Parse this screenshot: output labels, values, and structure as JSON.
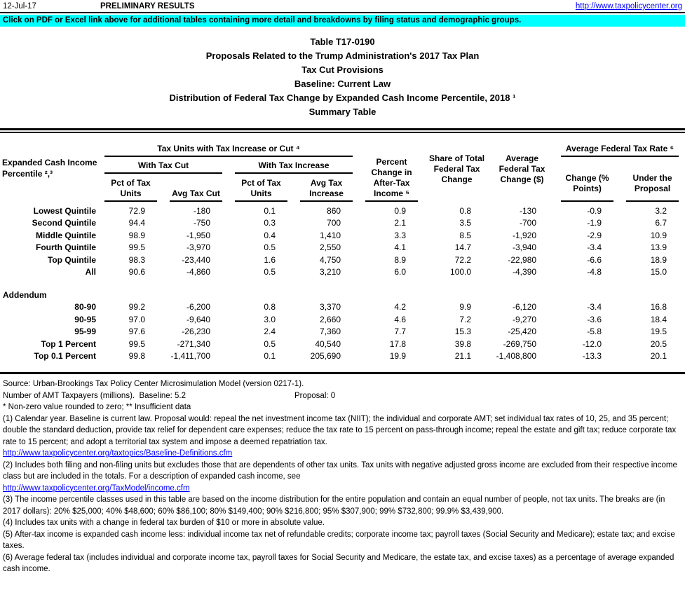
{
  "colors": {
    "banner_bg": "#00FFFF",
    "link": "#0000FF"
  },
  "topbar": {
    "date": "12-Jul-17",
    "status": "PRELIMINARY RESULTS",
    "link": "http://www.taxpolicycenter.org"
  },
  "banner": {
    "text": "Click on PDF or Excel link above for additional tables containing more detail and breakdowns by filing status and demographic groups."
  },
  "title": {
    "lines": [
      "Table T17-0190",
      "Proposals Related to the Trump Administration's 2017 Tax Plan",
      "Tax Cut Provisions",
      "Baseline: Current Law",
      "Distribution of Federal Tax Change by Expanded Cash Income Percentile, 2018 ¹",
      "Summary Table"
    ]
  },
  "table": {
    "row_header": "Expanded Cash Income Percentile ²,³",
    "groups": {
      "tax_units": "Tax Units with Tax Increase or Cut ⁴",
      "with_cut": "With Tax Cut",
      "with_increase": "With Tax Increase",
      "avg_rate": "Average Federal Tax Rate ⁶"
    },
    "columns": {
      "pct_units_cut": "Pct of Tax Units",
      "avg_cut": "Avg Tax Cut",
      "pct_units_inc": "Pct of Tax Units",
      "avg_inc": "Avg Tax Increase",
      "pct_change": "Percent Change in After-Tax Income ⁵",
      "share": "Share of Total Federal Tax Change",
      "avg_change": "Average Federal Tax Change ($)",
      "rate_change": "Change (% Points)",
      "rate_under": "Under the Proposal"
    },
    "body": [
      {
        "label": "Lowest Quintile",
        "values": [
          "72.9",
          "-180",
          "0.1",
          "860",
          "0.9",
          "0.8",
          "-130",
          "-0.9",
          "3.2"
        ]
      },
      {
        "label": "Second Quintile",
        "values": [
          "94.4",
          "-750",
          "0.3",
          "700",
          "2.1",
          "3.5",
          "-700",
          "-1.9",
          "6.7"
        ]
      },
      {
        "label": "Middle Quintile",
        "values": [
          "98.9",
          "-1,950",
          "0.4",
          "1,410",
          "3.3",
          "8.5",
          "-1,920",
          "-2.9",
          "10.9"
        ]
      },
      {
        "label": "Fourth Quintile",
        "values": [
          "99.5",
          "-3,970",
          "0.5",
          "2,550",
          "4.1",
          "14.7",
          "-3,940",
          "-3.4",
          "13.9"
        ]
      },
      {
        "label": "Top Quintile",
        "values": [
          "98.3",
          "-23,440",
          "1.6",
          "4,750",
          "8.9",
          "72.2",
          "-22,980",
          "-6.6",
          "18.9"
        ]
      },
      {
        "label": "All",
        "values": [
          "90.6",
          "-4,860",
          "0.5",
          "3,210",
          "6.0",
          "100.0",
          "-4,390",
          "-4.8",
          "15.0"
        ]
      },
      {
        "type": "spacer"
      },
      {
        "type": "section",
        "label": "Addendum"
      },
      {
        "label": "80-90",
        "values": [
          "99.2",
          "-6,200",
          "0.8",
          "3,370",
          "4.2",
          "9.9",
          "-6,120",
          "-3.4",
          "16.8"
        ]
      },
      {
        "label": "90-95",
        "values": [
          "97.0",
          "-9,640",
          "3.0",
          "2,660",
          "4.6",
          "7.2",
          "-9,270",
          "-3.6",
          "18.4"
        ]
      },
      {
        "label": "95-99",
        "values": [
          "97.6",
          "-26,230",
          "2.4",
          "7,360",
          "7.7",
          "15.3",
          "-25,420",
          "-5.8",
          "19.5"
        ]
      },
      {
        "label": "Top 1 Percent",
        "values": [
          "99.5",
          "-271,340",
          "0.5",
          "40,540",
          "17.8",
          "39.8",
          "-269,750",
          "-12.0",
          "20.5"
        ]
      },
      {
        "label": "Top 0.1 Percent",
        "values": [
          "99.8",
          "-1,411,700",
          "0.1",
          "205,690",
          "19.9",
          "21.1",
          "-1,408,800",
          "-13.3",
          "20.1"
        ]
      }
    ]
  },
  "footer": {
    "source": "Source: Urban-Brookings Tax Policy Center Microsimulation Model (version 0217-1).",
    "amt_baseline": "Number of AMT Taxpayers (millions).  Baseline: 5.2",
    "amt_proposal": "Proposal: 0",
    "rounding_note": "* Non-zero value rounded to zero; ** Insufficient data",
    "note1": "(1) Calendar year. Baseline is current law. Proposal would: repeal the net investment income tax (NIIT); the individual and corporate AMT; set individual tax rates of 10, 25, and 35 percent; double the standard deduction, provide tax relief for dependent care expenses; reduce the tax rate to 15 percent on pass-through income; repeal the estate and gift tax; reduce corporate tax rate to 15 percent; and adopt a territorial tax system and impose a deemed repatriation tax.",
    "link1": "http://www.taxpolicycenter.org/taxtopics/Baseline-Definitions.cfm",
    "note2": "(2) Includes both filing and non-filing units but excludes those that are dependents of other tax units. Tax units with negative adjusted gross income are excluded from their respective income class but are included in the totals. For a description of expanded cash income, see",
    "link2": "http://www.taxpolicycenter.org/TaxModel/income.cfm",
    "note3": "(3) The income percentile classes used in this table are based on the income distribution for the entire population and contain an equal number of people, not tax units. The breaks are (in 2017 dollars): 20% $25,000; 40% $48,600; 60% $86,100; 80% $149,400; 90% $216,800; 95% $307,900; 99% $732,800; 99.9% $3,439,900.",
    "note4": "(4) Includes tax units with a change in federal tax burden of $10 or more in absolute value.",
    "note5": "(5) After-tax income is expanded cash income less: individual income tax net of refundable credits; corporate income tax; payroll taxes (Social Security and Medicare); estate tax; and excise taxes.",
    "note6": "(6) Average federal tax (includes individual and corporate income tax, payroll taxes for Social Security and Medicare, the estate tax, and excise taxes) as a percentage of average expanded cash income."
  }
}
